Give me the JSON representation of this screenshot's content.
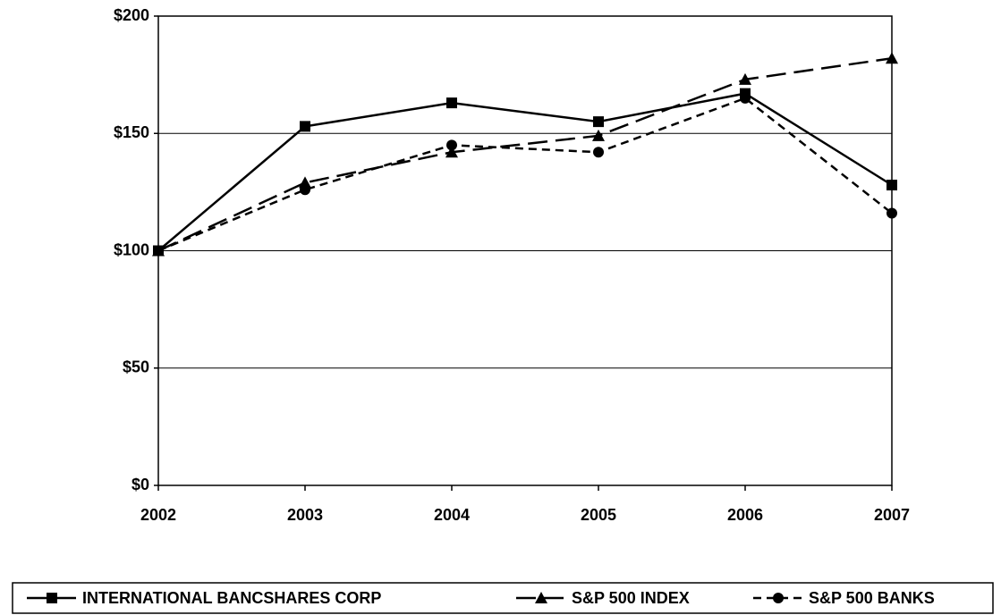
{
  "chart_data": {
    "type": "line",
    "categories": [
      "2002",
      "2003",
      "2004",
      "2005",
      "2006",
      "2007"
    ],
    "series": [
      {
        "name": "INTERNATIONAL BANCSHARES CORP",
        "color": "#000000",
        "marker": "square",
        "line_style": "solid",
        "values": [
          100,
          153,
          163,
          155,
          167,
          128
        ]
      },
      {
        "name": "S&P 500 INDEX",
        "color": "#000000",
        "marker": "triangle",
        "line_style": "long-dash",
        "values": [
          100,
          129,
          142,
          149,
          173,
          182
        ]
      },
      {
        "name": "S&P 500 BANKS",
        "color": "#000000",
        "marker": "circle",
        "line_style": "short-dash",
        "values": [
          100,
          126,
          145,
          142,
          165,
          116
        ]
      }
    ],
    "ylim": [
      0,
      200
    ],
    "yticks": [
      {
        "value": 0,
        "label": "$0"
      },
      {
        "value": 50,
        "label": "$50"
      },
      {
        "value": 100,
        "label": "$100"
      },
      {
        "value": 150,
        "label": "$150"
      },
      {
        "value": 200,
        "label": "$200"
      }
    ],
    "grid": true,
    "legend": "bottom"
  }
}
